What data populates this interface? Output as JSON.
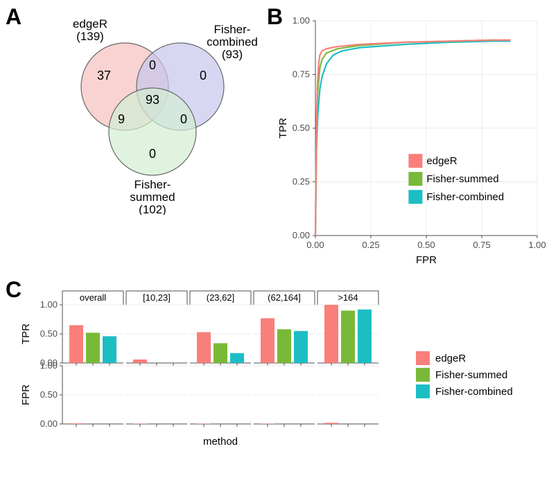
{
  "colors": {
    "edgeR": "#f97f7a",
    "fisher_summed": "#79b938",
    "fisher_combined": "#1cbec4",
    "venn_edgeR_fill": "#f7c3c3",
    "venn_fc_fill": "#c6c6ee",
    "venn_fs_fill": "#d2eed2",
    "venn_stroke": "#666666",
    "panel_bg": "#ffffff",
    "grid": "#ebebeb",
    "axis": "#4d4d4d"
  },
  "panelA": {
    "letter": "A",
    "sets": {
      "edgeR": {
        "label": "edgeR",
        "n": 139
      },
      "fisher_combined": {
        "label": "Fisher-\ncombined",
        "n": 93
      },
      "fisher_summed": {
        "label": "Fisher-\nsummed",
        "n": 102
      }
    },
    "regions": {
      "only_edgeR": 37,
      "only_fc": 0,
      "only_fs": 0,
      "edgeR_fc": 0,
      "edgeR_fs": 9,
      "fc_fs": 0,
      "all": 93
    }
  },
  "panelB": {
    "letter": "B",
    "x_label": "FPR",
    "y_label": "TPR",
    "xlim": [
      0,
      1
    ],
    "ylim": [
      0,
      1
    ],
    "ticks": [
      0.0,
      0.25,
      0.5,
      0.75,
      1.0
    ],
    "legend_items": [
      {
        "name": "edgeR",
        "color_key": "edgeR"
      },
      {
        "name": "Fisher-summed",
        "color_key": "fisher_summed"
      },
      {
        "name": "Fisher-combined",
        "color_key": "fisher_combined"
      }
    ],
    "roc": {
      "edgeR": [
        [
          0,
          0
        ],
        [
          0.005,
          0.55
        ],
        [
          0.01,
          0.72
        ],
        [
          0.015,
          0.8
        ],
        [
          0.02,
          0.84
        ],
        [
          0.03,
          0.86
        ],
        [
          0.05,
          0.87
        ],
        [
          0.1,
          0.88
        ],
        [
          0.2,
          0.89
        ],
        [
          0.4,
          0.9
        ],
        [
          0.6,
          0.905
        ],
        [
          0.8,
          0.91
        ],
        [
          0.88,
          0.91
        ]
      ],
      "fisher_summed": [
        [
          0,
          0
        ],
        [
          0.005,
          0.5
        ],
        [
          0.01,
          0.66
        ],
        [
          0.02,
          0.78
        ],
        [
          0.03,
          0.82
        ],
        [
          0.05,
          0.85
        ],
        [
          0.1,
          0.87
        ],
        [
          0.2,
          0.885
        ],
        [
          0.4,
          0.9
        ],
        [
          0.6,
          0.905
        ],
        [
          0.8,
          0.91
        ],
        [
          0.88,
          0.91
        ]
      ],
      "fisher_combined": [
        [
          0,
          0
        ],
        [
          0.005,
          0.4
        ],
        [
          0.01,
          0.55
        ],
        [
          0.02,
          0.68
        ],
        [
          0.03,
          0.74
        ],
        [
          0.05,
          0.8
        ],
        [
          0.08,
          0.84
        ],
        [
          0.12,
          0.86
        ],
        [
          0.2,
          0.875
        ],
        [
          0.4,
          0.89
        ],
        [
          0.6,
          0.9
        ],
        [
          0.8,
          0.905
        ],
        [
          0.88,
          0.905
        ]
      ]
    }
  },
  "panelC": {
    "letter": "C",
    "x_label": "method",
    "y_labels": [
      "TPR",
      "FPR"
    ],
    "facets": [
      "overall",
      "[10,23]",
      "(23,62]",
      "(62,164]",
      ">164"
    ],
    "y_ticks": [
      0.0,
      0.5,
      1.0
    ],
    "ylim": [
      0,
      1
    ],
    "tpr": {
      "overall": {
        "edgeR": 0.65,
        "fisher_summed": 0.52,
        "fisher_combined": 0.46
      },
      "[10,23]": {
        "edgeR": 0.06,
        "fisher_summed": 0.0,
        "fisher_combined": 0.0
      },
      "(23,62]": {
        "edgeR": 0.53,
        "fisher_summed": 0.34,
        "fisher_combined": 0.17
      },
      "(62,164]": {
        "edgeR": 0.77,
        "fisher_summed": 0.58,
        "fisher_combined": 0.55
      },
      ">164": {
        "edgeR": 1.0,
        "fisher_summed": 0.9,
        "fisher_combined": 0.92
      }
    },
    "fpr": {
      "overall": {
        "edgeR": 0.01,
        "fisher_summed": 0.0,
        "fisher_combined": 0.0
      },
      "[10,23]": {
        "edgeR": 0.005,
        "fisher_summed": 0.0,
        "fisher_combined": 0.0
      },
      "(23,62]": {
        "edgeR": 0.005,
        "fisher_summed": 0.0,
        "fisher_combined": 0.0
      },
      "(62,164]": {
        "edgeR": 0.005,
        "fisher_summed": 0.0,
        "fisher_combined": 0.0
      },
      ">164": {
        "edgeR": 0.02,
        "fisher_summed": 0.0,
        "fisher_combined": 0.0
      }
    },
    "legend_items": [
      {
        "name": "edgeR",
        "color_key": "edgeR"
      },
      {
        "name": "Fisher-summed",
        "color_key": "fisher_summed"
      },
      {
        "name": "Fisher-combined",
        "color_key": "fisher_combined"
      }
    ]
  }
}
